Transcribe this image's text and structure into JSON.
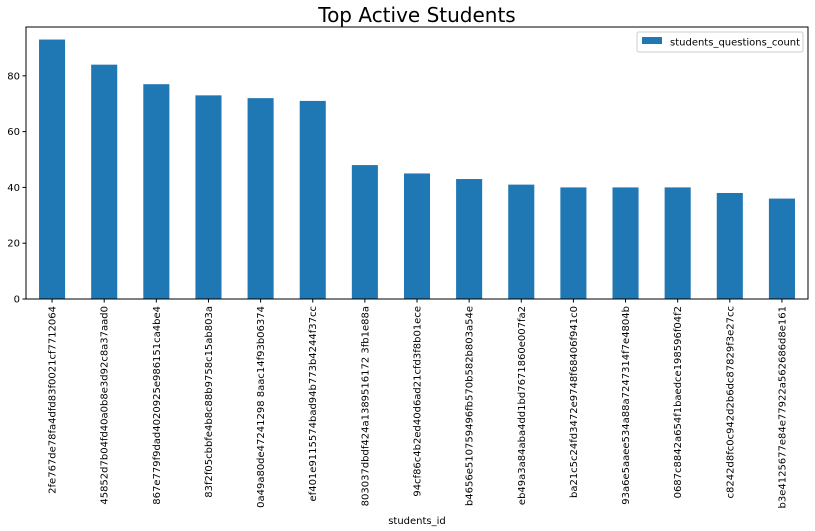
{
  "chart_data": {
    "type": "bar",
    "title": "Top Active Students",
    "xlabel": "students_id",
    "ylabel": "",
    "ylim": [
      0,
      97.5
    ],
    "yticks": [
      0,
      20,
      40,
      60,
      80
    ],
    "legend": {
      "position": "top-right"
    },
    "grid": false,
    "colors": {
      "bar": "#1f77b4"
    },
    "categories": [
      "2fe767de78fa4dfd83f0021cf7712064",
      "45852d7b04fd40a0b8e3d92c8a37aad0",
      "867e779f9dad4020925e986151ca4be4",
      "83f2f05cbbfe4b8c88b9758c15ab803a",
      "0a49a80de47241298 8aac14f93b06374",
      "ef401e9115574bad94b773b4244f37cc",
      "803037dbdf424a1389516172 3fb1e88a",
      "94cf86c4b2ed40d6ad21cfd3f8b01ece",
      "b4656e510759496fb570b582b803a54e",
      "eb49a3a84aba4dd1bd7671860e007fa2",
      "ba21c5c24fd3472e9748f68406f941c0",
      "93a6e5aaee534a88a7247314f7e4804b",
      "0687c8842a654f1baedce198596f04f2",
      "c8242d8fc0c942d2b6dc87829f3e27cc",
      "b3e4125677e84e77922a562686d8e161"
    ],
    "series": [
      {
        "name": "students_questions_count",
        "values": [
          93,
          84,
          77,
          73,
          72,
          71,
          48,
          45,
          43,
          41,
          40,
          40,
          40,
          38,
          36
        ]
      }
    ]
  }
}
